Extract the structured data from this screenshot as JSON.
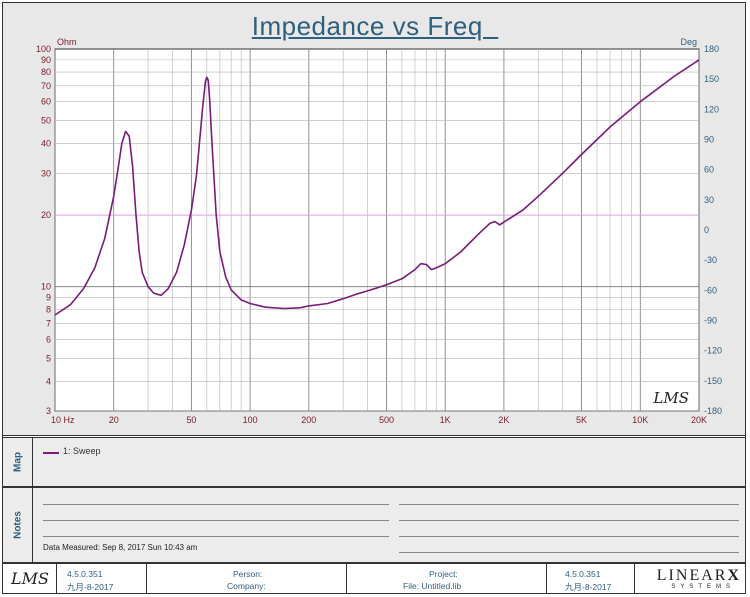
{
  "header": {
    "title": "Impedance vs Freq  "
  },
  "chart_data": {
    "type": "line",
    "title": "Impedance vs Freq",
    "x_scale": "log",
    "y_scale": "log",
    "xlim": [
      10,
      20000
    ],
    "ylim": [
      3,
      100
    ],
    "y2lim": [
      -180,
      180
    ],
    "left_unit": "Ohm",
    "right_unit": "Deg",
    "x_tick_labels": [
      "10  Hz",
      "20",
      "50",
      "100",
      "200",
      "500",
      "1K",
      "2K",
      "5K",
      "10K",
      "20K"
    ],
    "x_tick_values": [
      10,
      20,
      50,
      100,
      200,
      500,
      1000,
      2000,
      5000,
      10000,
      20000
    ],
    "y_tick_labels": [
      "100",
      "90",
      "80",
      "70",
      "60",
      "50",
      "40",
      "30",
      "20",
      "10",
      "9",
      "8",
      "7",
      "6",
      "5",
      "4",
      "3"
    ],
    "y_tick_values": [
      100,
      90,
      80,
      70,
      60,
      50,
      40,
      30,
      20,
      10,
      9,
      8,
      7,
      6,
      5,
      4,
      3
    ],
    "y2_tick_labels": [
      "180",
      "150",
      "120",
      "90",
      "60",
      "30",
      "0",
      "-30",
      "-60",
      "-90",
      "-120",
      "-150",
      "-180"
    ],
    "y2_tick_values": [
      180,
      150,
      120,
      90,
      60,
      30,
      0,
      -30,
      -60,
      -90,
      -120,
      -150,
      -180
    ],
    "reference_line": 20,
    "grid": true,
    "series": [
      {
        "name": "1: Sweep",
        "color": "#7a1a7a",
        "x": [
          10,
          12,
          14,
          16,
          18,
          20,
          21,
          22,
          23,
          24,
          25,
          26,
          27,
          28,
          30,
          32,
          35,
          38,
          42,
          46,
          50,
          53,
          55,
          57,
          59,
          60,
          61,
          62,
          64,
          67,
          70,
          75,
          80,
          90,
          100,
          120,
          150,
          180,
          200,
          250,
          300,
          350,
          400,
          450,
          500,
          600,
          700,
          750,
          800,
          850,
          900,
          1000,
          1200,
          1500,
          1700,
          1800,
          1900,
          2000,
          2500,
          3000,
          4000,
          5000,
          7000,
          10000,
          15000,
          20000
        ],
        "y": [
          7.6,
          8.4,
          9.8,
          12,
          16,
          24,
          31,
          40,
          45,
          43,
          32,
          20,
          14,
          11.5,
          10,
          9.4,
          9.2,
          9.8,
          11.5,
          15,
          21,
          29,
          40,
          56,
          73,
          76,
          74,
          62,
          38,
          20,
          14,
          11,
          9.7,
          8.8,
          8.5,
          8.2,
          8.1,
          8.15,
          8.3,
          8.5,
          8.9,
          9.3,
          9.6,
          9.9,
          10.2,
          10.8,
          11.8,
          12.5,
          12.4,
          11.8,
          12,
          12.5,
          14,
          16.8,
          18.5,
          18.8,
          18.2,
          18.7,
          21,
          24,
          30,
          36,
          47,
          60,
          77,
          90
        ]
      }
    ]
  },
  "map": {
    "legend": "1: Sweep",
    "label": "Map"
  },
  "notes": {
    "label": "Notes",
    "data_measured": "Data Measured: Sep 8, 2017 Sun 10:43 am"
  },
  "footer": {
    "logo": "LMS",
    "version_left": "4.5.0.351",
    "date_left": "九月-8-2017",
    "person_label": "Person:",
    "company_label": "Company:",
    "project_label": "Project:",
    "file_label": "File: Untitled.lib",
    "version_right": "4.5.0.351",
    "date_right": "九月-8-2017",
    "brand_linear": "LINEAR",
    "brand_x": "X",
    "brand_systems": "SYSTEMS"
  },
  "chart_logo": "LMS"
}
